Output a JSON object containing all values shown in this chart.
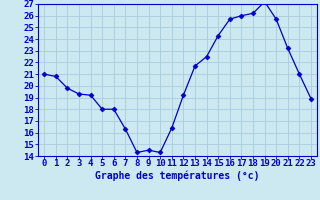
{
  "hours": [
    0,
    1,
    2,
    3,
    4,
    5,
    6,
    7,
    8,
    9,
    10,
    11,
    12,
    13,
    14,
    15,
    16,
    17,
    18,
    19,
    20,
    21,
    22,
    23
  ],
  "temps": [
    21.0,
    20.8,
    19.8,
    19.3,
    19.2,
    18.0,
    18.0,
    16.3,
    14.3,
    14.5,
    14.3,
    16.4,
    19.2,
    21.7,
    22.5,
    24.3,
    25.7,
    26.0,
    26.2,
    27.2,
    25.7,
    23.2,
    21.0,
    18.9
  ],
  "line_color": "#0000cc",
  "marker": "D",
  "marker_size": 2.5,
  "bg_color": "#cce8f0",
  "grid_color": "#aaccdd",
  "xlabel": "Graphe des températures (°c)",
  "ylim": [
    14,
    27
  ],
  "yticks": [
    14,
    15,
    16,
    17,
    18,
    19,
    20,
    21,
    22,
    23,
    24,
    25,
    26,
    27
  ],
  "xticks": [
    0,
    1,
    2,
    3,
    4,
    5,
    6,
    7,
    8,
    9,
    10,
    11,
    12,
    13,
    14,
    15,
    16,
    17,
    18,
    19,
    20,
    21,
    22,
    23
  ],
  "xlabel_color": "#0000cc",
  "xlabel_fontsize": 7,
  "tick_fontsize": 6.5,
  "tick_color": "#0000cc",
  "spine_color": "#0000cc"
}
